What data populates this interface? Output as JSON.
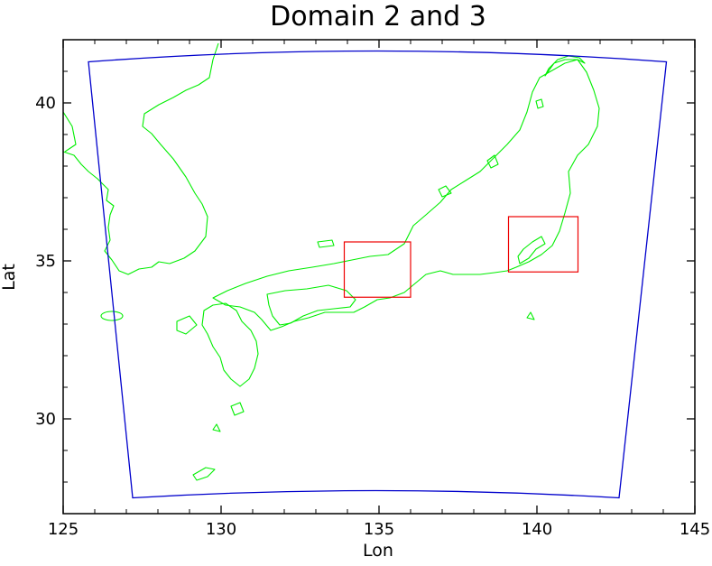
{
  "map": {
    "title": "Domain 2 and 3",
    "xlabel": "Lon",
    "ylabel": "Lat",
    "xlim": [
      125,
      145
    ],
    "ylim": [
      27,
      42
    ],
    "xticks": [
      125,
      130,
      135,
      140,
      145
    ],
    "yticks": [
      30,
      35,
      40
    ],
    "xtick_labels": [
      "125",
      "130",
      "135",
      "140",
      "145"
    ],
    "ytick_labels": [
      "30",
      "35",
      "40"
    ],
    "colors": {
      "outer_domain": "#0000cc",
      "nested_domain": "#ee0000",
      "coastline": "#00ee00"
    },
    "outer_domain": {
      "corners": {
        "top_left": [
          125.8,
          41.3
        ],
        "top_right": [
          144.1,
          41.3
        ],
        "bottom_right": [
          142.6,
          27.5
        ],
        "bottom_left": [
          127.2,
          27.5
        ]
      }
    },
    "nested_domains": [
      {
        "lon": [
          133.9,
          136.0
        ],
        "lat": [
          33.85,
          35.6
        ]
      },
      {
        "lon": [
          139.1,
          141.3
        ],
        "lat": [
          34.65,
          36.4
        ]
      }
    ]
  }
}
